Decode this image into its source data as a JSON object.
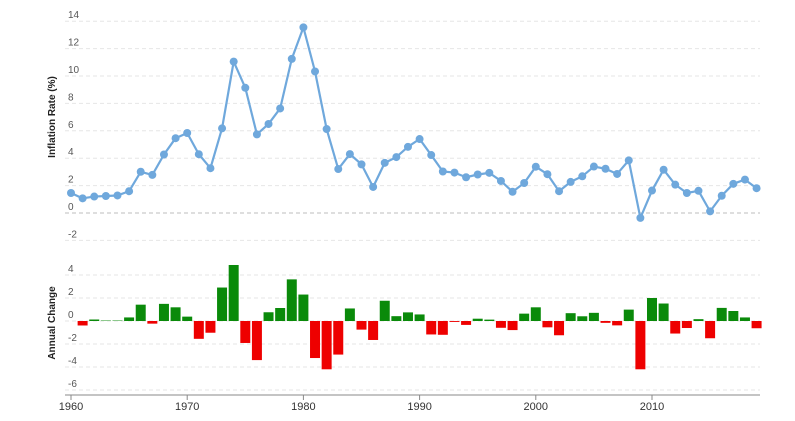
{
  "chart_data": [
    {
      "type": "line",
      "ylabel": "Inflation Rate (%)",
      "ylim": [
        -2,
        14
      ],
      "yticks": [
        -2,
        0,
        2,
        4,
        6,
        8,
        10,
        12,
        14
      ],
      "grid": "horizontal dashed",
      "color": "#6fa8dc",
      "x": [
        1960,
        1961,
        1962,
        1963,
        1964,
        1965,
        1966,
        1967,
        1968,
        1969,
        1970,
        1971,
        1972,
        1973,
        1974,
        1975,
        1976,
        1977,
        1978,
        1979,
        1980,
        1981,
        1982,
        1983,
        1984,
        1985,
        1986,
        1987,
        1988,
        1989,
        1990,
        1991,
        1992,
        1993,
        1994,
        1995,
        1996,
        1997,
        1998,
        1999,
        2000,
        2001,
        2002,
        2003,
        2004,
        2005,
        2006,
        2007,
        2008,
        2009,
        2010,
        2011,
        2012,
        2013,
        2014,
        2015,
        2016,
        2017,
        2018,
        2019
      ],
      "values": [
        1.46,
        1.07,
        1.2,
        1.24,
        1.28,
        1.59,
        3.01,
        2.78,
        4.27,
        5.46,
        5.84,
        4.29,
        3.27,
        6.18,
        11.05,
        9.14,
        5.74,
        6.5,
        7.63,
        11.25,
        13.55,
        10.33,
        6.13,
        3.21,
        4.3,
        3.55,
        1.9,
        3.66,
        4.08,
        4.83,
        5.4,
        4.23,
        3.03,
        2.95,
        2.61,
        2.81,
        2.93,
        2.34,
        1.55,
        2.19,
        3.38,
        2.83,
        1.59,
        2.27,
        2.68,
        3.39,
        3.23,
        2.85,
        3.84,
        -0.36,
        1.64,
        3.16,
        2.07,
        1.46,
        1.62,
        0.12,
        1.26,
        2.13,
        2.44,
        1.81
      ]
    },
    {
      "type": "bar",
      "ylabel": "Annual Change",
      "ylim": [
        -6,
        4
      ],
      "yticks": [
        -6,
        -4,
        -2,
        0,
        2,
        4
      ],
      "grid": "horizontal dashed",
      "positive_color": "#0a8a0a",
      "negative_color": "#ee0000",
      "x": [
        1960,
        1961,
        1962,
        1963,
        1964,
        1965,
        1966,
        1967,
        1968,
        1969,
        1970,
        1971,
        1972,
        1973,
        1974,
        1975,
        1976,
        1977,
        1978,
        1979,
        1980,
        1981,
        1982,
        1983,
        1984,
        1985,
        1986,
        1987,
        1988,
        1989,
        1990,
        1991,
        1992,
        1993,
        1994,
        1995,
        1996,
        1997,
        1998,
        1999,
        2000,
        2001,
        2002,
        2003,
        2004,
        2005,
        2006,
        2007,
        2008,
        2009,
        2010,
        2011,
        2012,
        2013,
        2014,
        2015,
        2016,
        2017,
        2018,
        2019
      ],
      "values": [
        0.0,
        -0.39,
        0.13,
        0.04,
        0.04,
        0.31,
        1.42,
        -0.23,
        1.49,
        1.19,
        0.38,
        -1.55,
        -1.02,
        2.91,
        4.87,
        -1.91,
        -3.4,
        0.76,
        1.13,
        3.62,
        2.3,
        -3.22,
        -4.2,
        -2.92,
        1.09,
        -0.75,
        -1.65,
        1.76,
        0.42,
        0.75,
        0.57,
        -1.17,
        -1.2,
        -0.08,
        -0.34,
        0.2,
        0.12,
        -0.59,
        -0.79,
        0.64,
        1.19,
        -0.55,
        -1.24,
        0.68,
        0.41,
        0.71,
        -0.16,
        -0.38,
        0.99,
        -4.2,
        2.0,
        1.52,
        -1.09,
        -0.61,
        0.16,
        -1.5,
        1.14,
        0.87,
        0.31,
        -0.63
      ]
    }
  ],
  "x_axis": {
    "tick_labels": [
      "1960",
      "1970",
      "1980",
      "1990",
      "2000",
      "2010"
    ],
    "range": [
      1960,
      2019
    ]
  }
}
